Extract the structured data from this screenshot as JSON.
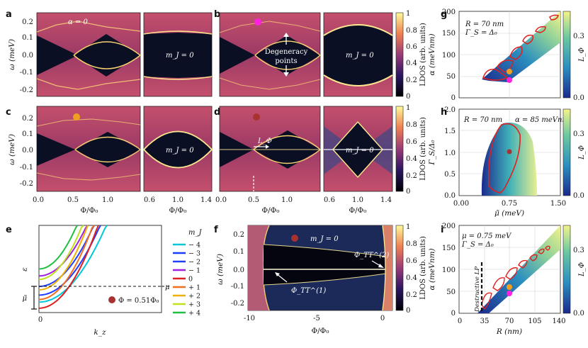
{
  "colors": {
    "ldos_low": "#080818",
    "ldos_mid": "#a33a6c",
    "ldos_high": "#fff6b8",
    "loc_low": "#1f2a8c",
    "loc_high": "#f5f38a",
    "marker_magenta": "#ff20e0",
    "marker_orange": "#f0a020",
    "marker_red": "#a83232",
    "contour": "#e02020"
  },
  "chart_data": [
    {
      "panel": "a",
      "type": "heatmap",
      "title": "α = 0",
      "xlabel": "",
      "ylabel": "ω (meV)",
      "ylim": [
        -0.27,
        0.25
      ],
      "yticks": [
        "0.2",
        "0.1",
        "0.0",
        "-0.1",
        "-0.2"
      ],
      "right_subpanel_label": "m_J = 0",
      "gap_edge_meV": 0.12
    },
    {
      "panel": "b",
      "type": "heatmap",
      "annotations": [
        "Degeneracy",
        "points"
      ],
      "right_subpanel_label": "m_J = 0",
      "colorbar": {
        "label": "LDOS (arb. units)",
        "ticks": [
          "1",
          "0.8",
          "0.6",
          "0.4",
          "0.2",
          "0"
        ]
      },
      "marker": "magenta"
    },
    {
      "panel": "c",
      "type": "heatmap",
      "xlabel": "Φ/Φ₀",
      "ylabel": "ω (meV)",
      "x_left_ticks": [
        "0.0",
        "0.5",
        "1.0"
      ],
      "x_right_ticks": [
        "0.6",
        "1.0",
        "1.4"
      ],
      "yticks": [
        "0.2",
        "0.1",
        "0.0",
        "-0.1",
        "-0.2"
      ],
      "right_subpanel_label": "m_J = 0",
      "marker": "orange"
    },
    {
      "panel": "d",
      "type": "heatmap",
      "xlabel": "Φ/Φ₀",
      "x_left_ticks": [
        "0.0",
        "0.5",
        "1.0"
      ],
      "x_right_ticks": [
        "0.6",
        "1.0",
        "1.4"
      ],
      "annotation": "L_Φ",
      "right_subpanel_label": "m_J = 0",
      "colorbar": {
        "label": "LDOS (arb. units)",
        "ticks": [
          "1",
          "0.8",
          "0.6",
          "0.4",
          "0.2",
          "0"
        ]
      },
      "marker": "dark red"
    },
    {
      "panel": "e",
      "type": "line",
      "xlabel": "k_z",
      "ylabel": "ε",
      "xtick": "0",
      "mu_label": "μ",
      "mu_tilde_label": "μ̃",
      "legend_title": "m_J",
      "series": [
        {
          "name": "− 4",
          "color": "#00c8d8"
        },
        {
          "name": "− 3",
          "color": "#1e3cff"
        },
        {
          "name": "− 2",
          "color": "#2040ff"
        },
        {
          "name": "− 1",
          "color": "#a020e0"
        },
        {
          "name": "0",
          "color": "#e02020"
        },
        {
          "name": "+ 1",
          "color": "#f07020"
        },
        {
          "name": "+ 2",
          "color": "#f0b000"
        },
        {
          "name": "+ 3",
          "color": "#c0e020"
        },
        {
          "name": "+ 4",
          "color": "#20c040"
        }
      ],
      "marker_label": "Φ = 0.51Φ₀"
    },
    {
      "panel": "f",
      "type": "heatmap",
      "xlabel": "Φ/Φ₀",
      "ylabel": "ω (meV)",
      "xlim": [
        -10,
        1
      ],
      "ylim": [
        -0.27,
        0.25
      ],
      "xticks": [
        "-10",
        "-5",
        "0"
      ],
      "yticks": [
        "0.2",
        "0.1",
        "0.0",
        "-0.1",
        "-0.2"
      ],
      "title": "m_J = 0",
      "annotations": [
        "Φ_TT^(1)",
        "Φ_TT^(2)"
      ],
      "colorbar": {
        "label": "LDOS (arb. units)",
        "ticks": [
          "1",
          "0.8",
          "0.6",
          "0.4",
          "0.2",
          "0"
        ]
      }
    },
    {
      "panel": "g",
      "type": "heatmap",
      "xlabel": "",
      "ylabel": "α (meVnm)",
      "ylim": [
        0,
        200
      ],
      "yticks": [
        "200",
        "150",
        "100",
        "50",
        "0"
      ],
      "annotations": [
        "R = 70 nm",
        "Γ_S = Δ₀"
      ],
      "colorbar": {
        "label": "L_Φ",
        "ticks": [
          "0.3",
          "0.0"
        ]
      }
    },
    {
      "panel": "h",
      "type": "heatmap",
      "xlabel": "μ̃ (meV)",
      "ylabel": "Γ_S/Δ₀",
      "xlim": [
        0,
        1.5
      ],
      "ylim": [
        0,
        2
      ],
      "xticks": [
        "0.00",
        "0.75",
        "1.50"
      ],
      "yticks": [
        "2.0",
        "1.5",
        "1.0",
        "0.5",
        "0.0"
      ],
      "annotations": [
        "R = 70 nm",
        "α = 85 meVnm"
      ],
      "colorbar": {
        "label": "L_Φ",
        "ticks": [
          "0.3",
          "0.0"
        ]
      }
    },
    {
      "panel": "i",
      "type": "heatmap",
      "xlabel": "R (nm)",
      "ylabel": "α (meVnm)",
      "xlim": [
        0,
        140
      ],
      "ylim": [
        0,
        200
      ],
      "xticks": [
        "0",
        "35",
        "70",
        "105",
        "140"
      ],
      "yticks": [
        "200",
        "150",
        "100",
        "50",
        "0"
      ],
      "annotations": [
        "μ = 0.75 meV",
        "Γ_S = Δ₀",
        "Destructive LP"
      ],
      "colorbar": {
        "label": "L_Φ",
        "ticks": [
          "0.3",
          "0.0"
        ]
      }
    }
  ]
}
